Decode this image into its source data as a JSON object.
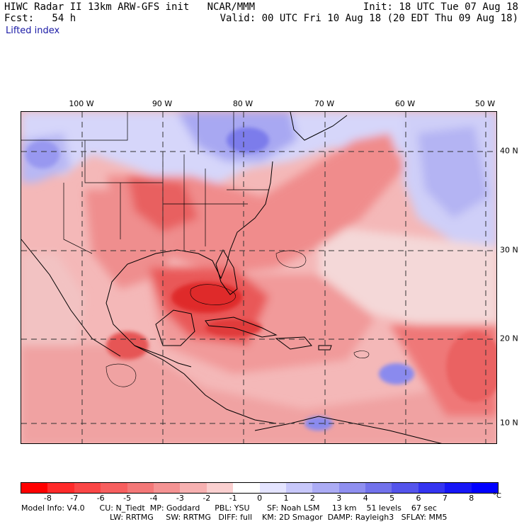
{
  "header": {
    "line1_left": "HIWC Radar II 13km ARW-GFS init   NCAR/MMM",
    "line1_right": "Init: 18 UTC Tue 07 Aug 18",
    "line2_left": "Fcst:   54 h",
    "line2_right": "Valid: 00 UTC Fri 10 Aug 18 (20 EDT Thu 09 Aug 18)",
    "field": "Lifted index"
  },
  "longitude_labels": [
    "100 W",
    "90 W",
    "80 W",
    "70 W",
    "60 W",
    "50 W"
  ],
  "latitude_labels": [
    "40 N",
    "30 N",
    "20 N",
    "10 N"
  ],
  "colorbar": {
    "labels": [
      "-8",
      "-7",
      "-6",
      "-5",
      "-4",
      "-3",
      "-2",
      "-1",
      "0",
      "1",
      "2",
      "3",
      "4",
      "5",
      "6",
      "7",
      "8"
    ],
    "unit": "°C",
    "colors": [
      "#ff0000",
      "#ff2a2a",
      "#fb4646",
      "#f75f5f",
      "#f47878",
      "#f59393",
      "#f7b1b1",
      "#fbd0d0",
      "#ffffff",
      "#e4e4ff",
      "#c8c8fb",
      "#acacf5",
      "#8f8ff0",
      "#7272ec",
      "#5454ec",
      "#3434f0",
      "#1616f6",
      "#0000ff"
    ]
  },
  "footer": {
    "line1": "Model Info: V4.0      CU: N_Tiedt  MP: Goddard      PBL: YSU       SF: Noah LSM     13 km    51 levels    67 sec",
    "line2": "LW: RRTMG     SW: RRTMG   DIFF: full    KM: 2D Smagor  DAMP: Rayleigh3   SFLAY: MM5"
  },
  "map_colors": {
    "neutral": "#f8dede",
    "weak_red": "#f6b4b4",
    "mid_red": "#f28a8a",
    "strong_red": "#ea5a5a",
    "core_red": "#e02a2a",
    "blue_light": "#d8d8fb",
    "blue_mid": "#a8a8f2",
    "blue_dark": "#7676ea",
    "land_line": "#000000",
    "grid_line": "#333333"
  }
}
